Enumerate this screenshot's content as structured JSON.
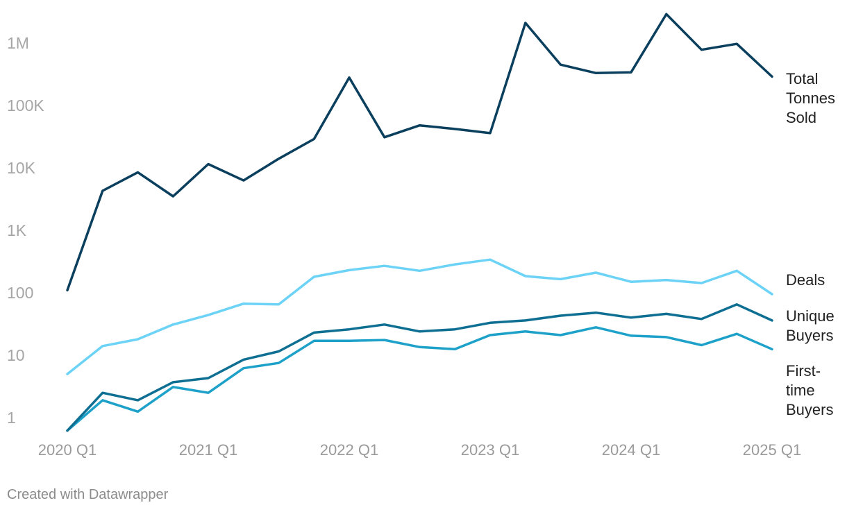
{
  "footer": {
    "credit": "Created with Datawrapper"
  },
  "chart_data": {
    "type": "line",
    "title": "",
    "xlabel": "",
    "ylabel": "",
    "yscale": "log",
    "ylim": [
      0.5,
      3500000
    ],
    "yticks": [
      {
        "value": 1,
        "label": "1"
      },
      {
        "value": 10,
        "label": "10"
      },
      {
        "value": 100,
        "label": "100"
      },
      {
        "value": 1000,
        "label": "1K"
      },
      {
        "value": 10000,
        "label": "10K"
      },
      {
        "value": 100000,
        "label": "100K"
      },
      {
        "value": 1000000,
        "label": "1M"
      }
    ],
    "grid": false,
    "legend": "direct labels at line ends (right)",
    "x": [
      "2020 Q1",
      "2020 Q2",
      "2020 Q3",
      "2020 Q4",
      "2021 Q1",
      "2021 Q2",
      "2021 Q3",
      "2021 Q4",
      "2022 Q1",
      "2022 Q2",
      "2022 Q3",
      "2022 Q4",
      "2023 Q1",
      "2023 Q2",
      "2023 Q3",
      "2023 Q4",
      "2024 Q1",
      "2024 Q2",
      "2024 Q3",
      "2024 Q4",
      "2025 Q1"
    ],
    "xticks": [
      "2020 Q1",
      "2021 Q1",
      "2022 Q1",
      "2023 Q1",
      "2024 Q1",
      "2025 Q1"
    ],
    "series": [
      {
        "name": "Total Tonnes Sold",
        "label_lines": [
          "Total",
          "Tonnes",
          "Sold"
        ],
        "color": "#0b3f5e",
        "values": [
          110,
          4300,
          8500,
          3500,
          11500,
          6300,
          14000,
          29000,
          280000,
          31000,
          48000,
          42000,
          36000,
          2100000,
          450000,
          330000,
          340000,
          2900000,
          780000,
          970000,
          290000
        ]
      },
      {
        "name": "Deals",
        "label_lines": [
          "Deals"
        ],
        "color": "#6cd3f7",
        "values": [
          5,
          14,
          18,
          31,
          44,
          67,
          65,
          180,
          230,
          270,
          225,
          285,
          340,
          185,
          165,
          210,
          150,
          160,
          143,
          225,
          95
        ]
      },
      {
        "name": "Unique Buyers",
        "label_lines": [
          "Unique",
          "Buyers"
        ],
        "color": "#0f6f93",
        "values": [
          0.62,
          2.5,
          1.9,
          3.7,
          4.3,
          8.5,
          11.5,
          23,
          26,
          31,
          24,
          26,
          33,
          36,
          43,
          48,
          40,
          46,
          38,
          65,
          36
        ]
      },
      {
        "name": "First-time Buyers",
        "label_lines": [
          "First-",
          "time",
          "Buyers"
        ],
        "color": "#1ea1c9",
        "values": [
          0.62,
          1.9,
          1.25,
          3.1,
          2.5,
          6.2,
          7.5,
          17,
          17,
          17.5,
          13.5,
          12.5,
          21,
          24,
          21,
          28,
          20.5,
          19.5,
          14.5,
          22,
          12.5
        ]
      }
    ]
  }
}
